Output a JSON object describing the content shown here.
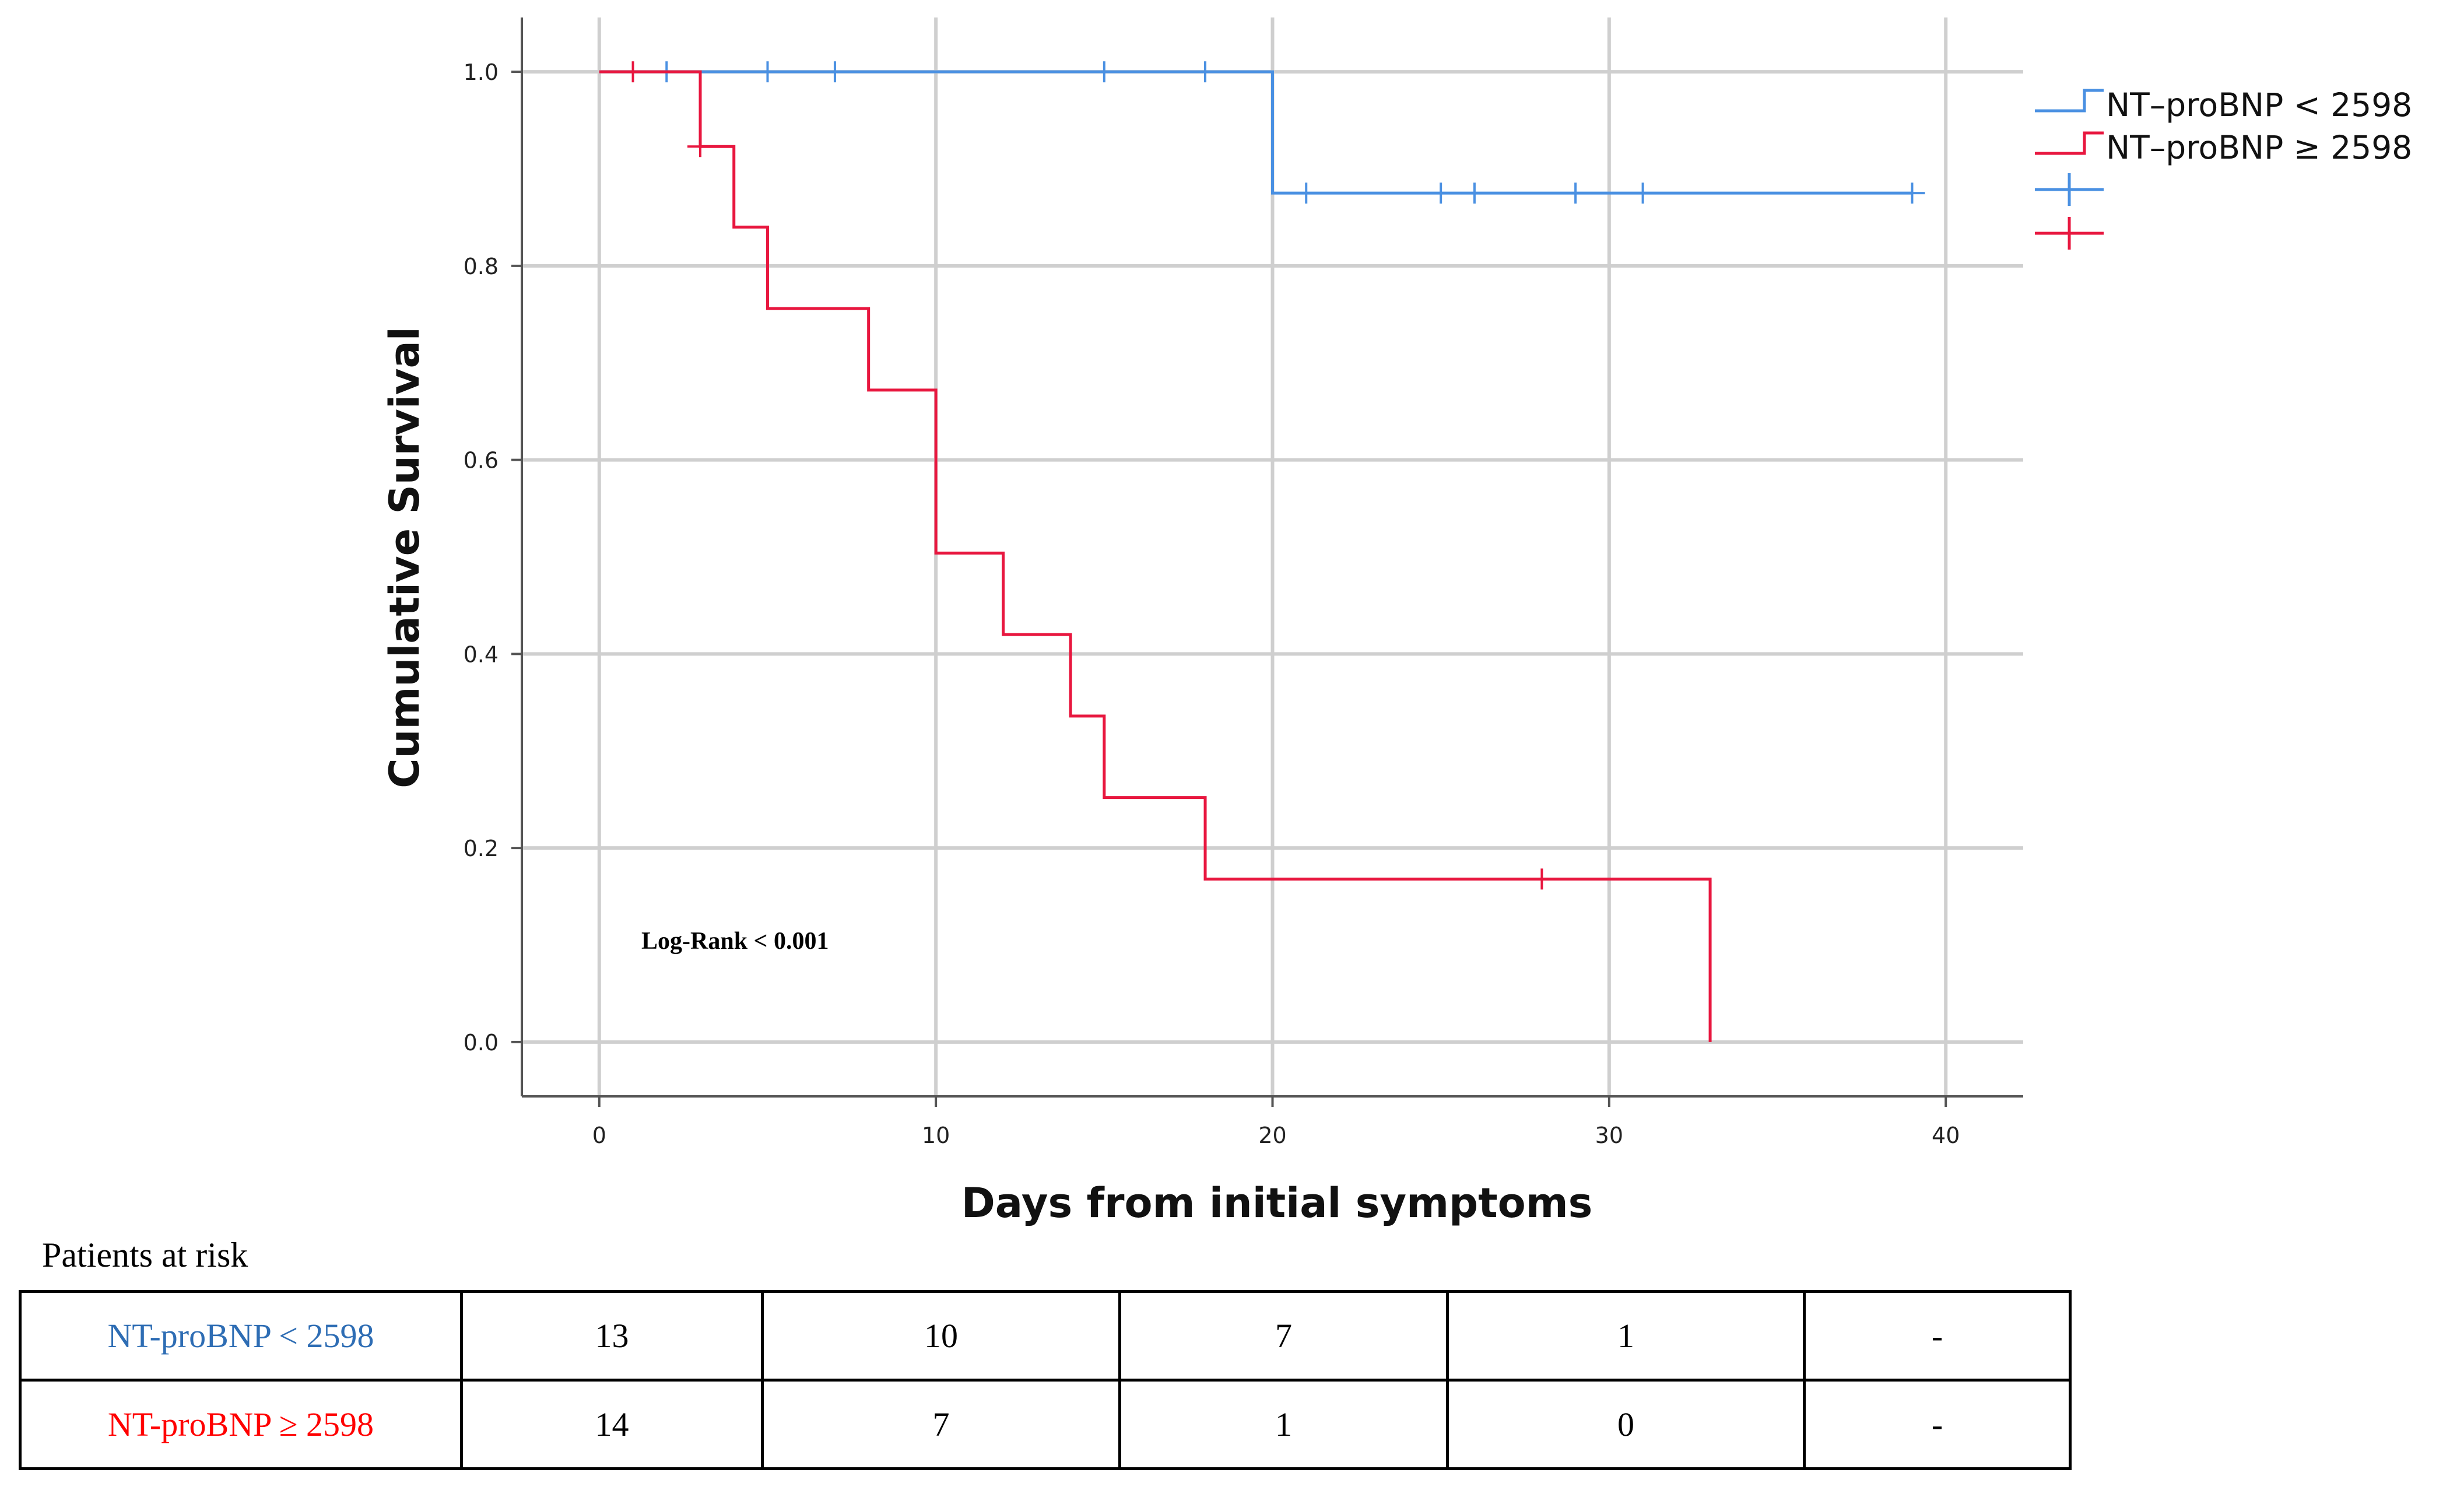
{
  "chart_data": {
    "type": "line",
    "subtype": "kaplan-meier",
    "title": "",
    "xlabel": "Days from initial symptoms",
    "ylabel": "Cumulative Survival",
    "xlim": [
      -2.3,
      42.3
    ],
    "ylim": [
      -0.056,
      1.056
    ],
    "xticks": [
      0,
      10,
      20,
      30,
      40
    ],
    "yticks": [
      0.0,
      0.2,
      0.4,
      0.6,
      0.8,
      1.0
    ],
    "xtick_labels": [
      "0",
      "10",
      "20",
      "30",
      "40"
    ],
    "ytick_labels": [
      "0.0",
      "0.2",
      "0.4",
      "0.6",
      "0.8",
      "1.0"
    ],
    "grid": true,
    "annotation": "Log-Rank < 0.001",
    "legend_position": "top-right",
    "legend": {
      "items": [
        "NT–proBNP  <  2598",
        "NT–proBNP  ≥  2598"
      ]
    },
    "series": [
      {
        "name": "NT–proBNP  <  2598",
        "color": "#4a90e2",
        "steps": [
          [
            0,
            1.0
          ],
          [
            20,
            0.875
          ],
          [
            39,
            0.875
          ]
        ],
        "censored": [
          [
            2,
            1.0
          ],
          [
            5,
            1.0
          ],
          [
            7,
            1.0
          ],
          [
            15,
            1.0
          ],
          [
            18,
            1.0
          ],
          [
            21,
            0.875
          ],
          [
            25,
            0.875
          ],
          [
            26,
            0.875
          ],
          [
            29,
            0.875
          ],
          [
            31,
            0.875
          ],
          [
            39,
            0.875
          ]
        ]
      },
      {
        "name": "NT–proBNP  ≥  2598",
        "color": "#e8173f",
        "steps": [
          [
            0,
            1.0
          ],
          [
            3,
            0.923
          ],
          [
            4,
            0.84
          ],
          [
            5,
            0.756
          ],
          [
            8,
            0.672
          ],
          [
            10,
            0.504
          ],
          [
            12,
            0.42
          ],
          [
            14,
            0.336
          ],
          [
            15,
            0.252
          ],
          [
            18,
            0.168
          ],
          [
            33,
            0.0
          ]
        ],
        "censored": [
          [
            1,
            1.0
          ],
          [
            3,
            0.923
          ],
          [
            28,
            0.168
          ]
        ]
      }
    ]
  },
  "risk_table": {
    "title": "Patients at risk",
    "rows": [
      {
        "label": "NT-proBNP < 2598",
        "color": "#2e6db4",
        "values": [
          "13",
          "10",
          "7",
          "1",
          "-"
        ]
      },
      {
        "label": "NT-proBNP ≥ 2598",
        "color": "#ff0000",
        "values": [
          "14",
          "7",
          "1",
          "0",
          "-"
        ]
      }
    ]
  }
}
